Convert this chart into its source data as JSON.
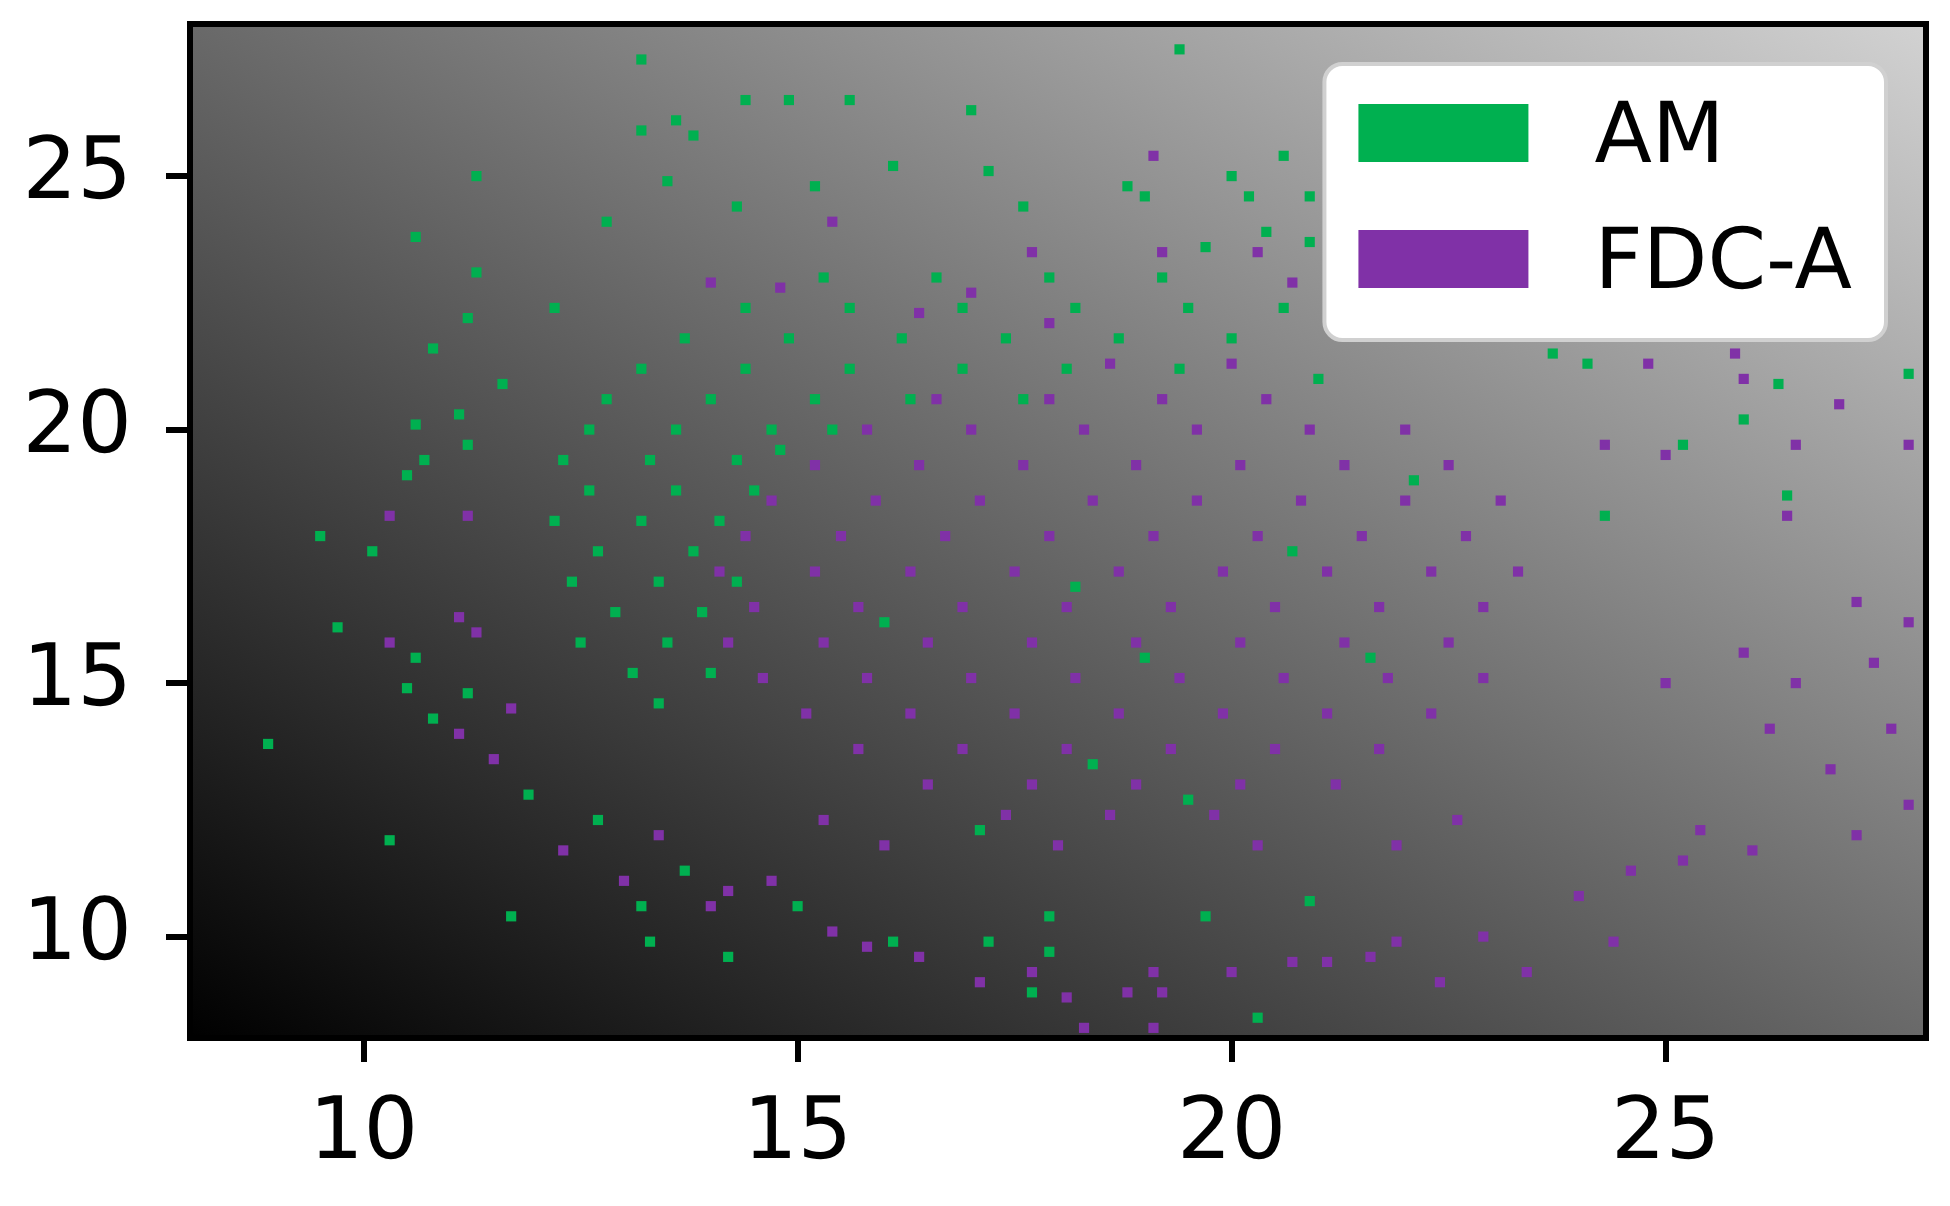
{
  "chart_data": {
    "type": "scatter",
    "marker": "square",
    "legend": "top right",
    "xlim": [
      8,
      28
    ],
    "ylim": [
      8,
      28
    ],
    "xticks": [
      10,
      15,
      20,
      25
    ],
    "yticks": [
      10,
      15,
      20,
      25
    ],
    "series": [
      {
        "name": "AM",
        "color": "#00b050",
        "x": [
          15.3,
          16.6,
          17.9,
          19.2,
          14.4,
          15.6,
          16.9,
          18.2,
          19.5,
          20.6,
          13.7,
          14.9,
          16.2,
          17.4,
          18.7,
          20.0,
          13.2,
          14.4,
          15.6,
          16.9,
          18.1,
          19.4,
          12.8,
          14.0,
          15.2,
          16.3,
          17.6,
          12.6,
          13.6,
          14.7,
          15.4,
          12.3,
          13.3,
          14.3,
          14.8,
          12.6,
          13.6,
          14.5,
          12.2,
          13.2,
          14.1,
          12.7,
          13.8,
          12.4,
          13.4,
          14.3,
          12.9,
          13.9,
          12.5,
          13.5,
          13.1,
          14.0,
          13.4,
          16.0,
          18.2,
          19.0,
          20.7,
          21.6,
          18.4,
          22.1,
          19.5,
          17.1,
          21.0,
          13.2,
          14.4,
          13.6,
          13.2,
          13.8,
          11.3,
          13.5,
          10.6,
          12.8,
          11.3,
          11.2,
          10.8,
          12.2,
          11.6,
          10.6,
          11.1,
          10.5,
          11.2,
          10.7,
          14.3,
          8.9,
          9.7,
          9.5,
          10.3,
          11.7,
          13.3,
          14.2,
          13.2,
          13.7,
          10.1,
          10.6,
          10.8,
          10.5,
          11.2,
          11.9,
          12.7,
          17.7,
          20.3,
          19.7,
          17.9,
          17.2,
          16.1,
          15.0,
          17.9,
          20.9,
          19.4,
          15.6,
          14.9,
          17.0,
          16.1,
          17.2,
          20.0,
          20.6,
          20.2,
          18.8,
          19.0,
          17.6,
          15.2,
          20.9,
          19.7,
          20.9,
          20.4,
          27.8,
          26.3,
          25.9,
          25.2,
          26.4,
          24.1,
          23.7,
          24.3
        ],
        "values": [
          23.0,
          23.0,
          23.0,
          23.0,
          22.4,
          22.4,
          22.4,
          22.4,
          22.4,
          22.4,
          21.8,
          21.8,
          21.8,
          21.8,
          21.8,
          21.8,
          21.2,
          21.2,
          21.2,
          21.2,
          21.2,
          21.2,
          20.6,
          20.6,
          20.6,
          20.6,
          20.6,
          20.0,
          20.0,
          20.0,
          20.0,
          19.4,
          19.4,
          19.4,
          19.6,
          18.8,
          18.8,
          18.8,
          18.2,
          18.2,
          18.2,
          17.6,
          17.6,
          17.0,
          17.0,
          17.0,
          16.4,
          16.4,
          15.8,
          15.8,
          15.2,
          15.2,
          14.6,
          16.2,
          16.9,
          15.5,
          17.6,
          15.5,
          13.4,
          19.0,
          12.7,
          12.1,
          21.0,
          27.3,
          26.5,
          26.1,
          25.9,
          25.8,
          25.0,
          24.9,
          23.8,
          24.1,
          23.1,
          22.2,
          21.6,
          22.4,
          20.9,
          20.1,
          20.3,
          19.1,
          19.7,
          19.4,
          24.4,
          13.8,
          16.1,
          17.9,
          11.9,
          10.4,
          9.9,
          9.6,
          10.6,
          11.3,
          17.6,
          15.5,
          14.3,
          14.9,
          14.8,
          12.8,
          12.3,
          8.9,
          8.4,
          10.4,
          10.4,
          9.9,
          9.9,
          10.6,
          9.7,
          10.7,
          27.5,
          26.5,
          26.5,
          26.3,
          25.2,
          25.1,
          25.0,
          25.4,
          24.6,
          24.8,
          24.6,
          24.4,
          24.8,
          23.7,
          23.6,
          24.6,
          23.9,
          21.1,
          20.9,
          20.2,
          19.7,
          18.7,
          21.3,
          21.5,
          18.3
        ]
      },
      {
        "name": "FDC-A",
        "color": "#8031a7",
        "x": [
          16.6,
          17.9,
          19.2,
          20.4,
          15.8,
          17.0,
          18.3,
          19.6,
          20.9,
          22.0,
          15.2,
          16.4,
          17.6,
          18.9,
          20.1,
          21.3,
          22.5,
          14.7,
          15.9,
          17.1,
          18.4,
          19.6,
          20.8,
          22.0,
          23.1,
          14.4,
          15.5,
          16.7,
          17.9,
          19.1,
          20.3,
          21.5,
          22.7,
          14.1,
          15.2,
          16.3,
          17.5,
          18.7,
          19.9,
          21.1,
          22.3,
          23.3,
          14.5,
          15.7,
          16.9,
          18.1,
          19.3,
          20.5,
          21.7,
          22.9,
          14.2,
          15.3,
          16.5,
          17.7,
          18.9,
          20.1,
          21.3,
          22.5,
          14.6,
          15.8,
          17.0,
          18.2,
          19.4,
          20.6,
          21.8,
          22.9,
          15.1,
          16.3,
          17.5,
          18.7,
          19.9,
          21.1,
          22.3,
          15.7,
          16.9,
          18.1,
          19.3,
          20.5,
          21.7,
          16.5,
          17.7,
          18.9,
          20.1,
          21.2,
          17.4,
          18.6,
          19.8,
          16.0,
          18.0,
          20.3,
          21.9,
          15.3,
          22.6,
          18.6,
          20.0,
          17.9,
          27.8,
          27.8,
          27.6,
          27.4,
          27.2,
          27.2,
          26.9,
          26.5,
          26.2,
          26.0,
          25.9,
          25.4,
          25.2,
          24.6,
          24.4,
          23.4,
          22.4,
          22.9,
          21.9,
          21.6,
          21.1,
          24.0,
          25.0,
          18.3,
          19.1,
          18.1,
          18.8,
          17.1,
          16.4,
          15.8,
          15.4,
          19.1,
          20.0,
          19.2,
          17.7,
          20.7,
          10.3,
          11.1,
          11.5,
          11.3,
          12.3,
          13.0,
          14.0,
          11.7,
          11.1,
          13.4,
          14.2,
          14.7,
          10.3,
          11.2,
          14.0,
          14.8,
          19.1,
          15.4,
          17.7,
          19.2,
          20.3,
          17.0,
          20.7,
          16.4,
          24.8,
          25.8,
          27.0,
          26.5,
          27.8,
          25.9,
          25.0,
          26.4,
          24.3
        ],
        "values": [
          20.6,
          20.6,
          20.6,
          20.6,
          20.0,
          20.0,
          20.0,
          20.0,
          20.0,
          20.0,
          19.3,
          19.3,
          19.3,
          19.3,
          19.3,
          19.3,
          19.3,
          18.6,
          18.6,
          18.6,
          18.6,
          18.6,
          18.6,
          18.6,
          18.6,
          17.9,
          17.9,
          17.9,
          17.9,
          17.9,
          17.9,
          17.9,
          17.9,
          17.2,
          17.2,
          17.2,
          17.2,
          17.2,
          17.2,
          17.2,
          17.2,
          17.2,
          16.5,
          16.5,
          16.5,
          16.5,
          16.5,
          16.5,
          16.5,
          16.5,
          15.8,
          15.8,
          15.8,
          15.8,
          15.8,
          15.8,
          15.8,
          15.8,
          15.1,
          15.1,
          15.1,
          15.1,
          15.1,
          15.1,
          15.1,
          15.1,
          14.4,
          14.4,
          14.4,
          14.4,
          14.4,
          14.4,
          14.4,
          13.7,
          13.7,
          13.7,
          13.7,
          13.7,
          13.7,
          13.0,
          13.0,
          13.0,
          13.0,
          13.0,
          12.4,
          12.4,
          12.4,
          11.8,
          11.8,
          11.8,
          11.8,
          12.3,
          12.3,
          21.3,
          21.3,
          22.1,
          16.2,
          12.6,
          14.1,
          15.4,
          16.6,
          12.0,
          13.3,
          15.0,
          14.1,
          11.7,
          15.6,
          12.1,
          11.5,
          11.3,
          9.9,
          9.3,
          9.1,
          10.0,
          9.9,
          9.6,
          9.5,
          10.8,
          15.0,
          8.2,
          8.2,
          8.8,
          8.9,
          9.1,
          9.6,
          9.8,
          10.1,
          9.3,
          9.3,
          8.9,
          9.3,
          9.5,
          15.8,
          14.0,
          13.5,
          16.0,
          11.7,
          11.1,
          10.6,
          14.5,
          16.3,
          12.0,
          10.9,
          11.1,
          18.3,
          18.3,
          22.9,
          22.8,
          25.4,
          24.1,
          23.5,
          23.5,
          23.5,
          22.7,
          22.9,
          22.3,
          21.3,
          21.5,
          20.5,
          19.7,
          19.7,
          21.0,
          19.5,
          18.3,
          19.7
        ]
      }
    ]
  }
}
